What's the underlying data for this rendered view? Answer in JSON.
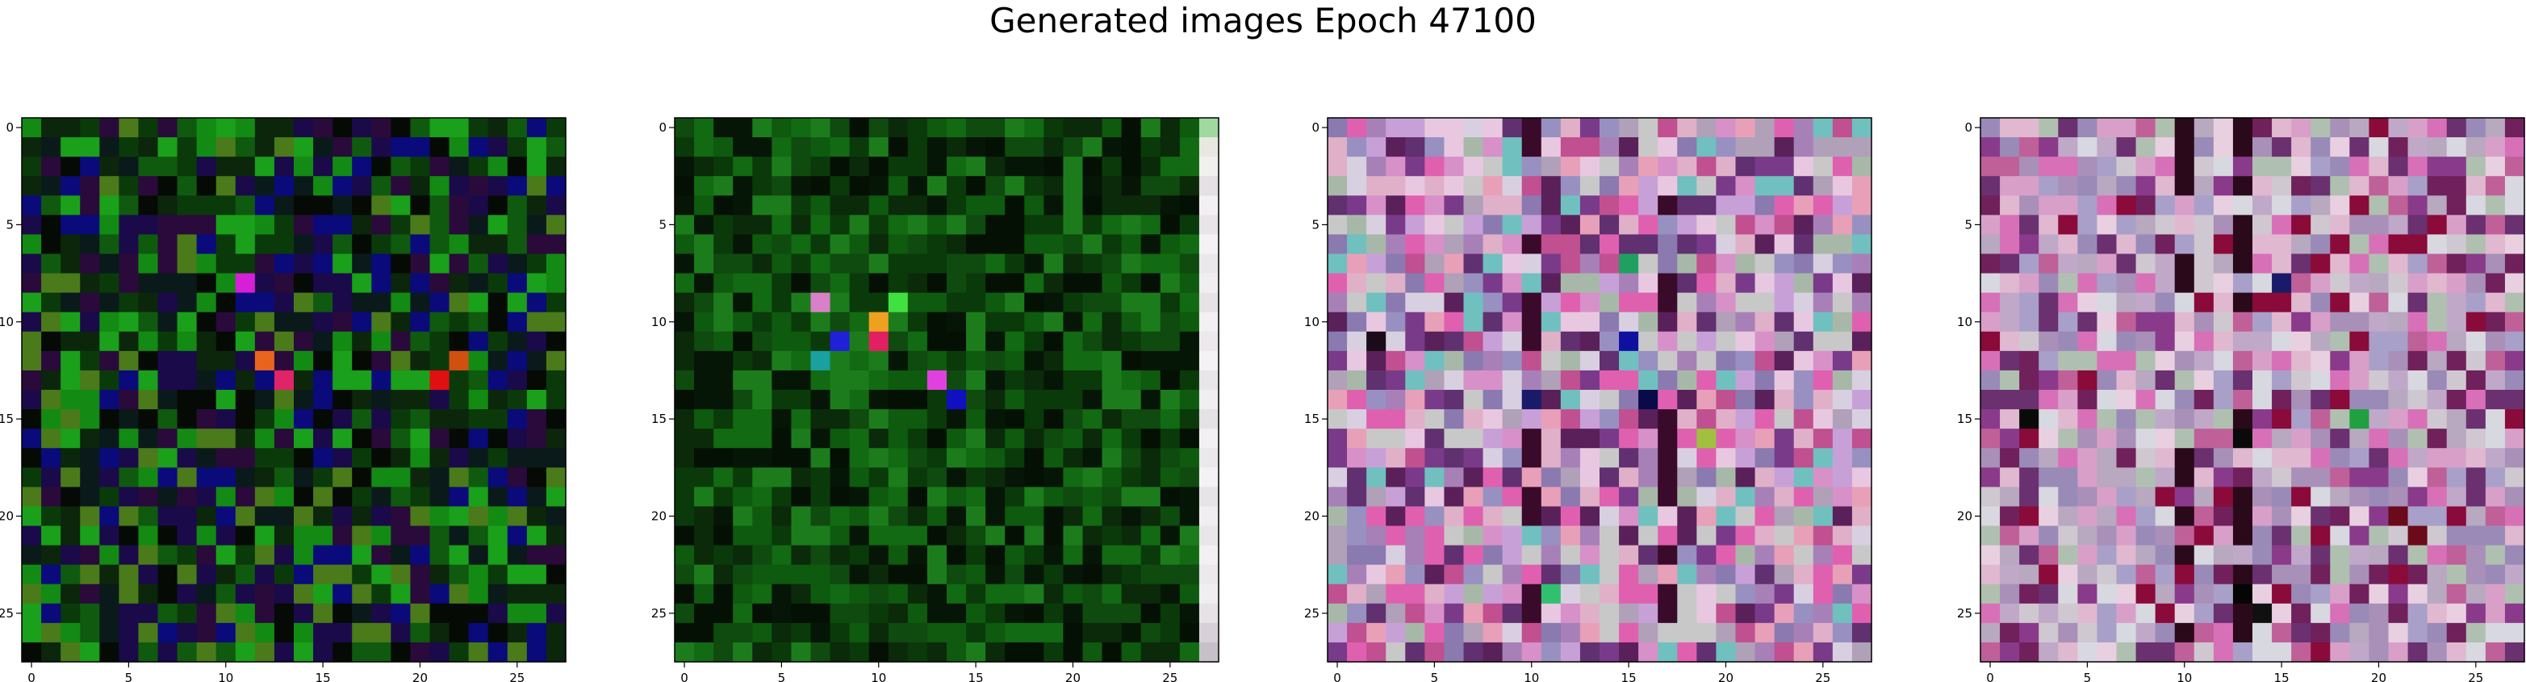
{
  "figure": {
    "suptitle": "Generated images Epoch 47100"
  },
  "chart_data": [
    {
      "type": "heatmap",
      "title": "",
      "grid_size": 28,
      "xlim": [
        -0.5,
        27.5
      ],
      "ylim": [
        27.5,
        -0.5
      ],
      "x_ticks": [
        0,
        5,
        10,
        15,
        20,
        25
      ],
      "y_ticks": [
        0,
        5,
        10,
        15,
        20,
        25
      ],
      "palette": [
        "#0a3a0a",
        "#0f5a0f",
        "#138a13",
        "#0b260b",
        "#050a05",
        "#1a0a4a",
        "#0a0a7a",
        "#2a0a3a",
        "#1aa01a",
        "#4a7a1a",
        "#0a1a1a"
      ],
      "seed": 11,
      "highlights": [
        {
          "row": 12,
          "col": 12,
          "color": "#e8641e"
        },
        {
          "row": 13,
          "col": 13,
          "color": "#e0246a"
        },
        {
          "row": 8,
          "col": 11,
          "color": "#d61fd6"
        },
        {
          "row": 13,
          "col": 21,
          "color": "#e01010"
        },
        {
          "row": 12,
          "col": 22,
          "color": "#d05010"
        }
      ]
    },
    {
      "type": "heatmap",
      "title": "",
      "grid_size": 28,
      "xlim": [
        -0.5,
        27.5
      ],
      "ylim": [
        27.5,
        -0.5
      ],
      "x_ticks": [
        0,
        5,
        10,
        15,
        20,
        25
      ],
      "y_ticks": [
        0,
        5,
        10,
        15,
        20,
        25
      ],
      "palette": [
        "#0a3a0a",
        "#0f4a0f",
        "#126a12",
        "#0a2a0a",
        "#061606",
        "#1c7c1c",
        "#0e5a0e",
        "#041004"
      ],
      "seed": 23,
      "last_column": [
        "#a0d8a0",
        "#e8e8e0",
        "#f0f0ee",
        "#e4e0e4",
        "#f2f0f2",
        "#e8e4e8",
        "#f4f2f4",
        "#ebe8eb",
        "#f0eef0",
        "#e6e2e6",
        "#f2f0f2",
        "#ece8ec",
        "#f4f2f4",
        "#e8e6e8",
        "#f0eef0",
        "#e4e2e4",
        "#f2f0f2",
        "#eae8ea",
        "#f4f2f4",
        "#e6e4e6",
        "#f0eef0",
        "#e8e6e8",
        "#f2f0f2",
        "#ece8ec",
        "#f0eef0",
        "#e6e2e6",
        "#d8d0d8",
        "#c8c0c8"
      ],
      "highlights": [
        {
          "row": 9,
          "col": 7,
          "color": "#d880c8"
        },
        {
          "row": 11,
          "col": 8,
          "color": "#2020d8"
        },
        {
          "row": 10,
          "col": 10,
          "color": "#f0a020"
        },
        {
          "row": 11,
          "col": 10,
          "color": "#e02060"
        },
        {
          "row": 13,
          "col": 13,
          "color": "#e040e0"
        },
        {
          "row": 14,
          "col": 14,
          "color": "#1010c0"
        },
        {
          "row": 12,
          "col": 7,
          "color": "#1aa0a0"
        },
        {
          "row": 9,
          "col": 11,
          "color": "#40e040"
        }
      ]
    },
    {
      "type": "heatmap",
      "title": "",
      "grid_size": 28,
      "xlim": [
        -0.5,
        27.5
      ],
      "ylim": [
        27.5,
        -0.5
      ],
      "x_ticks": [
        0,
        5,
        10,
        15,
        20,
        25
      ],
      "y_ticks": [
        0,
        5,
        10,
        15,
        20,
        25
      ],
      "palette": [
        "#c8a0d8",
        "#e0b0c8",
        "#a880b8",
        "#d890c8",
        "#8a7ab0",
        "#e8c8e0",
        "#b0a0b8",
        "#c05090",
        "#7a3a8a",
        "#d8d0e0",
        "#a8b8a8",
        "#e060b0",
        "#603070",
        "#9890c0",
        "#5a205a",
        "#c8c8c8",
        "#e8a0b8",
        "#70c0c0"
      ],
      "seed": 37,
      "dark_columns": [
        10,
        17
      ],
      "dark_color": "#3a0a2a",
      "highlights": [
        {
          "row": 11,
          "col": 2,
          "color": "#1a0a1a"
        },
        {
          "row": 14,
          "col": 10,
          "color": "#1a1a6a"
        },
        {
          "row": 11,
          "col": 15,
          "color": "#1010a0"
        },
        {
          "row": 14,
          "col": 16,
          "color": "#0a0a4a"
        },
        {
          "row": 7,
          "col": 15,
          "color": "#20a060"
        },
        {
          "row": 24,
          "col": 11,
          "color": "#30c070"
        },
        {
          "row": 16,
          "col": 19,
          "color": "#a0c040"
        }
      ]
    },
    {
      "type": "heatmap",
      "title": "",
      "grid_size": 28,
      "xlim": [
        -0.5,
        27.5
      ],
      "ylim": [
        27.5,
        -0.5
      ],
      "x_ticks": [
        0,
        5,
        10,
        15,
        20,
        25
      ],
      "y_ticks": [
        0,
        5,
        10,
        15,
        20,
        25
      ],
      "palette": [
        "#c0a8c8",
        "#e0b8d0",
        "#a890b8",
        "#d8a0c8",
        "#9a8ab8",
        "#e8d0e0",
        "#b8a8c0",
        "#c06098",
        "#8a3a8a",
        "#d8d8e0",
        "#b0c0b0",
        "#d870b8",
        "#6a3070",
        "#a8a0c8",
        "#70205a",
        "#8a0a3a",
        "#d0c8d0"
      ],
      "seed": 53,
      "dark_columns": [
        10,
        13
      ],
      "dark_color": "#2a0a1a",
      "highlights": [
        {
          "row": 15,
          "col": 2,
          "color": "#0a0a0a"
        },
        {
          "row": 16,
          "col": 13,
          "color": "#0a0a0a"
        },
        {
          "row": 24,
          "col": 13,
          "color": "#050505"
        },
        {
          "row": 25,
          "col": 14,
          "color": "#101010"
        },
        {
          "row": 15,
          "col": 19,
          "color": "#20a040"
        },
        {
          "row": 8,
          "col": 15,
          "color": "#1a1a6a"
        },
        {
          "row": 20,
          "col": 21,
          "color": "#6a0a1a"
        },
        {
          "row": 21,
          "col": 22,
          "color": "#6a0a1a"
        }
      ]
    }
  ]
}
